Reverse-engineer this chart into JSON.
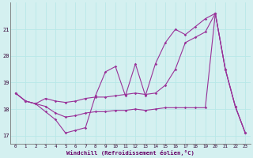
{
  "xlabel": "Windchill (Refroidissement éolien,°C)",
  "background_color": "#d4f0f0",
  "line_color": "#993399",
  "grid_color": "#b8e8e8",
  "xlim": [
    -0.5,
    23.5
  ],
  "ylim": [
    16.7,
    22.0
  ],
  "yticks": [
    17,
    18,
    19,
    20,
    21
  ],
  "xticks": [
    0,
    1,
    2,
    3,
    4,
    5,
    6,
    7,
    8,
    9,
    10,
    11,
    12,
    13,
    14,
    15,
    16,
    17,
    18,
    19,
    20,
    21,
    22,
    23
  ],
  "series1_x": [
    0,
    1,
    2,
    3,
    4,
    5,
    6,
    7,
    8,
    9,
    10,
    11,
    12,
    13,
    14,
    15,
    16,
    17,
    18,
    19,
    20,
    21,
    22,
    23
  ],
  "series1_y": [
    18.6,
    18.3,
    18.2,
    17.9,
    17.6,
    17.1,
    17.2,
    17.3,
    18.5,
    19.4,
    19.6,
    18.5,
    19.7,
    18.5,
    19.7,
    20.5,
    21.0,
    20.8,
    21.1,
    21.4,
    21.6,
    19.5,
    18.1,
    17.1
  ],
  "series2_x": [
    0,
    1,
    2,
    3,
    4,
    5,
    6,
    7,
    8,
    9,
    10,
    11,
    12,
    13,
    14,
    15,
    16,
    17,
    18,
    19,
    20,
    21,
    22,
    23
  ],
  "series2_y": [
    18.6,
    18.3,
    18.2,
    18.4,
    18.3,
    18.25,
    18.3,
    18.4,
    18.45,
    18.45,
    18.5,
    18.55,
    18.6,
    18.55,
    18.6,
    18.9,
    19.5,
    20.5,
    20.7,
    20.9,
    21.6,
    19.5,
    18.1,
    17.1
  ],
  "series3_x": [
    0,
    1,
    2,
    3,
    4,
    5,
    6,
    7,
    8,
    9,
    10,
    11,
    12,
    13,
    14,
    15,
    16,
    17,
    18,
    19,
    20,
    21,
    22,
    23
  ],
  "series3_y": [
    18.6,
    18.3,
    18.2,
    18.1,
    17.85,
    17.7,
    17.75,
    17.85,
    17.9,
    17.9,
    17.95,
    17.95,
    18.0,
    17.95,
    18.0,
    18.05,
    18.05,
    18.05,
    18.05,
    18.05,
    21.6,
    19.5,
    18.1,
    17.1
  ]
}
